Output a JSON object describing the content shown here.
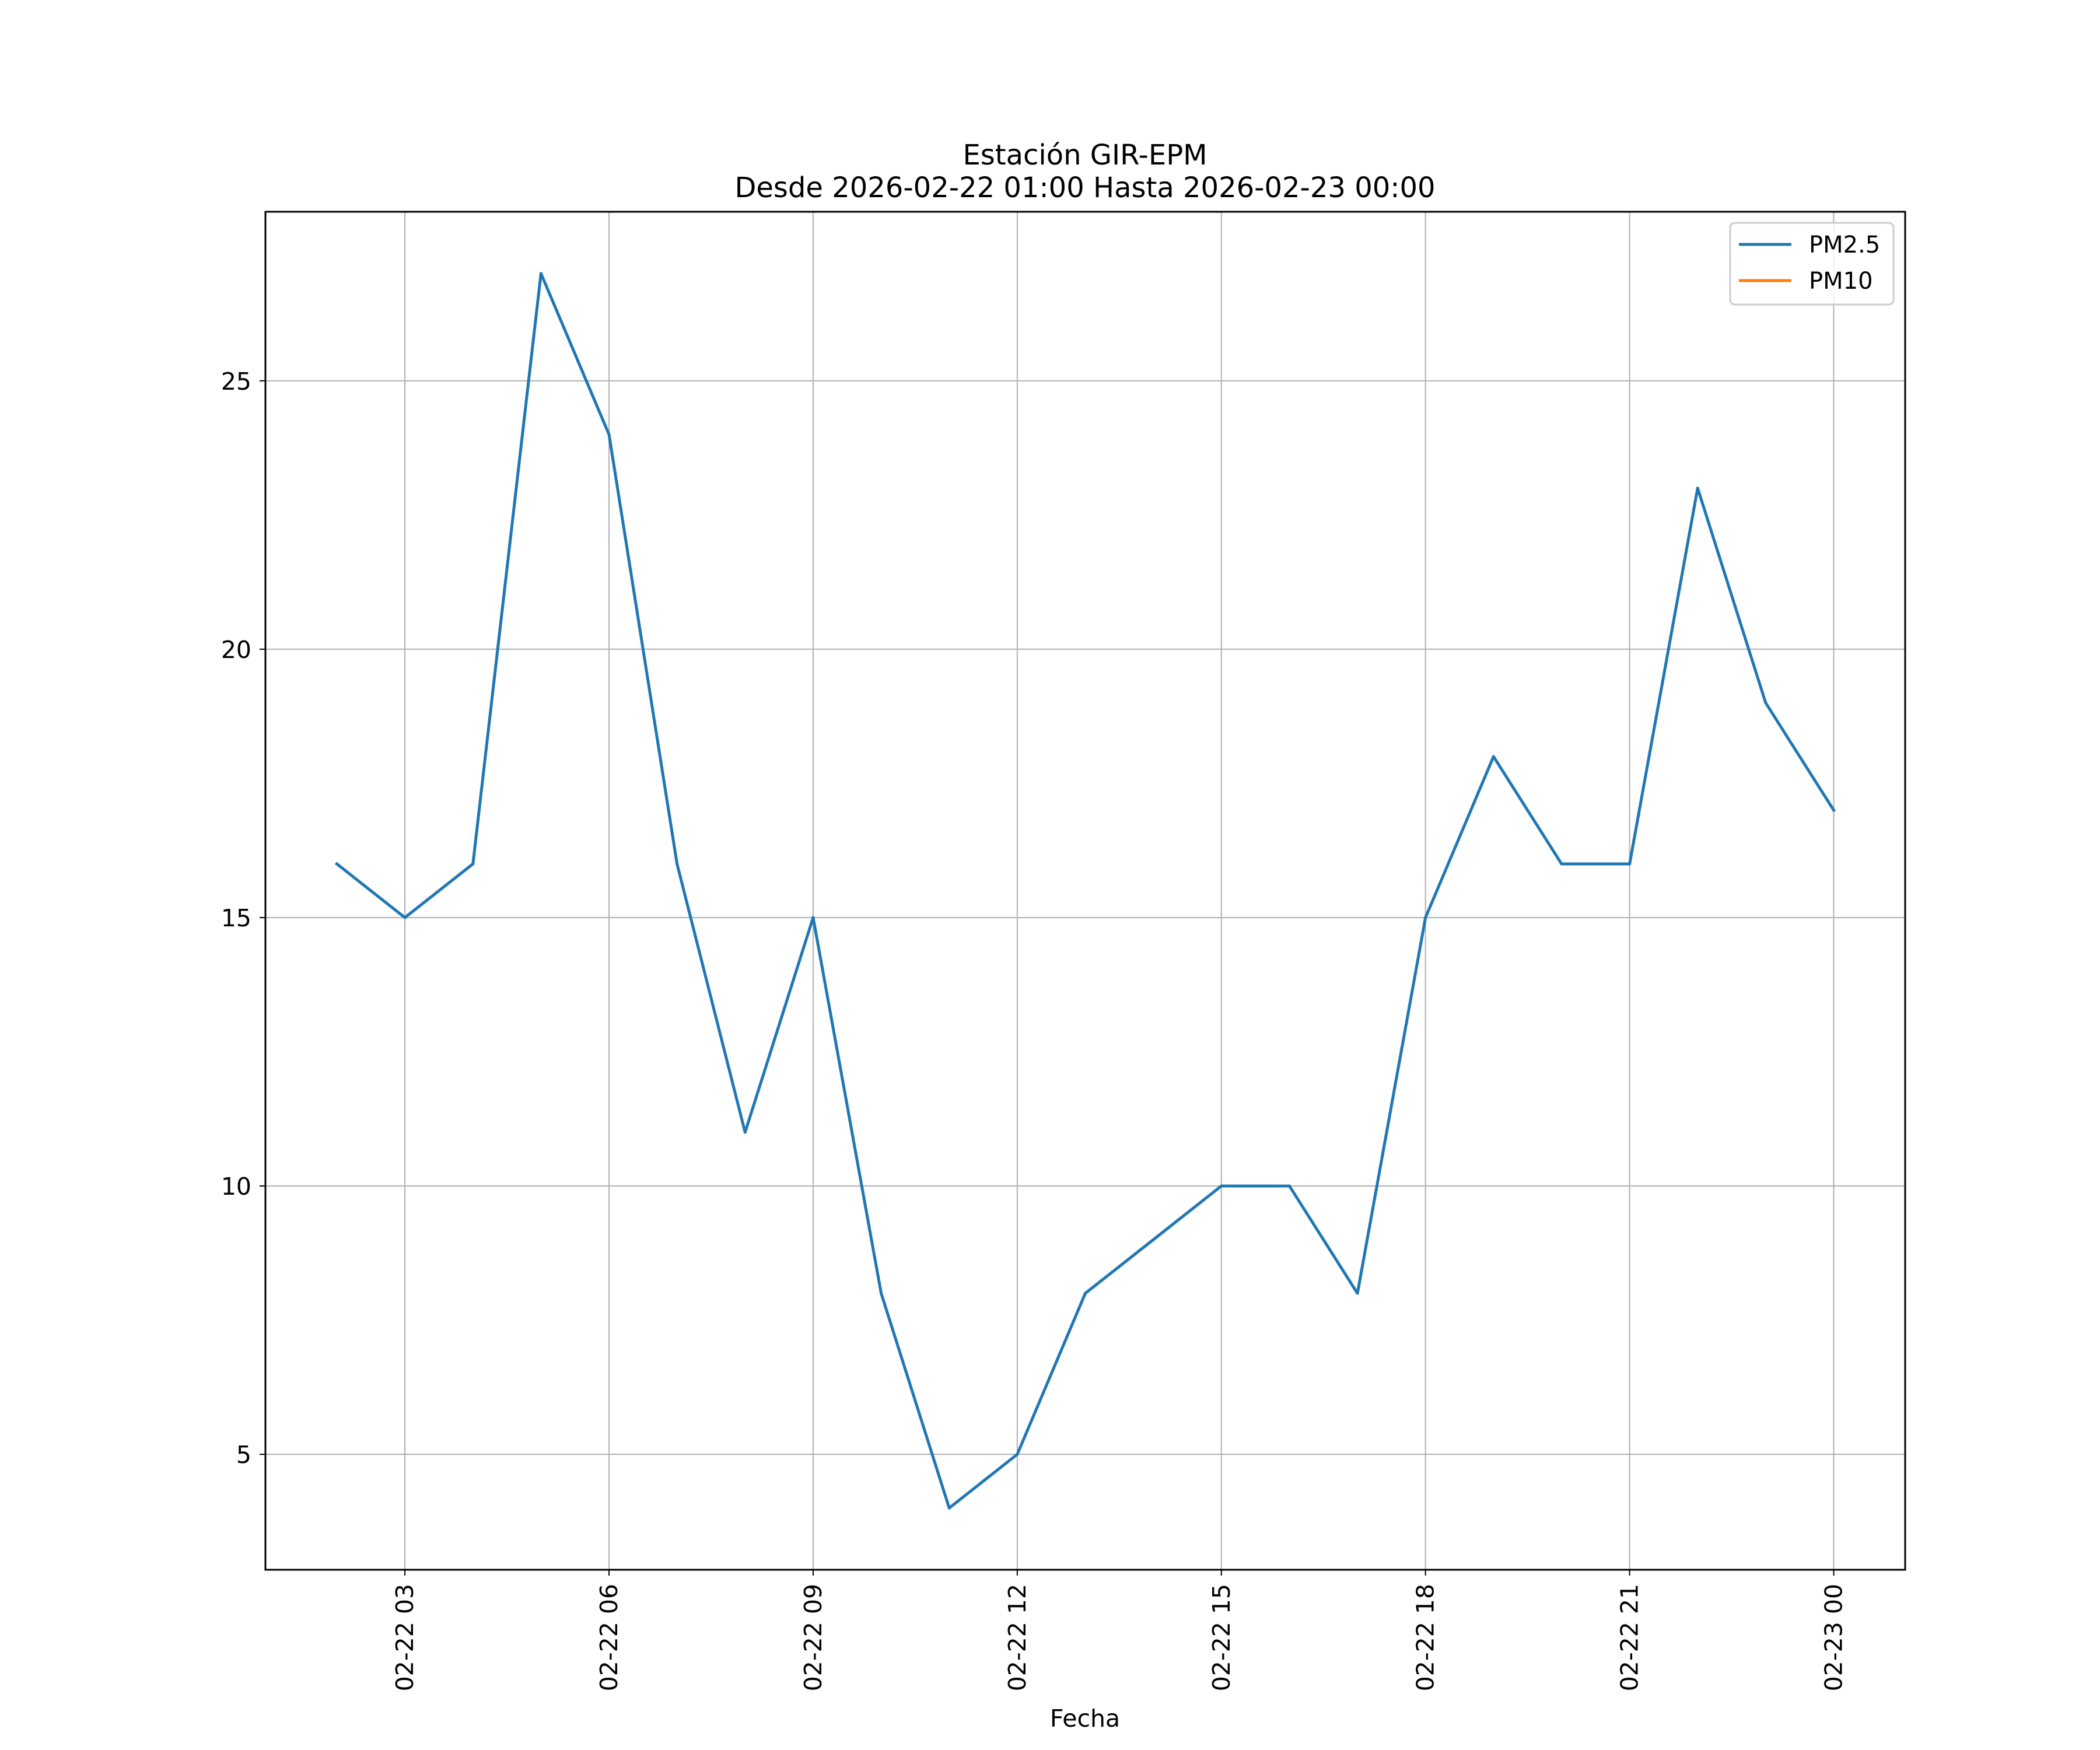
{
  "chart_data": {
    "type": "line",
    "title_line1": "Estación GIR-EPM",
    "title_line2": "Desde 2026-02-22 01:00 Hasta 2026-02-23 00:00",
    "xlabel": "Fecha",
    "ylabel": "",
    "x_ticks": [
      {
        "hour": 3,
        "label": "02-22 03"
      },
      {
        "hour": 6,
        "label": "02-22 06"
      },
      {
        "hour": 9,
        "label": "02-22 09"
      },
      {
        "hour": 12,
        "label": "02-22 12"
      },
      {
        "hour": 15,
        "label": "02-22 15"
      },
      {
        "hour": 18,
        "label": "02-22 18"
      },
      {
        "hour": 21,
        "label": "02-22 21"
      },
      {
        "hour": 24,
        "label": "02-23 00"
      }
    ],
    "y_ticks": [
      5,
      10,
      15,
      20,
      25
    ],
    "xlim": [
      0.95,
      25.05
    ],
    "ylim": [
      2.85,
      28.15
    ],
    "grid": true,
    "legend_position": "top-right",
    "series": [
      {
        "name": "PM2.5",
        "color": "#1f77b4",
        "x": [
          2,
          3,
          4,
          5,
          6,
          7,
          8,
          9,
          10,
          11,
          12,
          13,
          14,
          15,
          16,
          17,
          18,
          19,
          20,
          21,
          22,
          23,
          24
        ],
        "values": [
          16,
          15,
          16,
          27,
          24,
          16,
          11,
          15,
          8,
          4,
          5,
          8,
          9,
          10,
          10,
          8,
          15,
          18,
          16,
          16,
          23,
          19,
          17
        ]
      },
      {
        "name": "PM10",
        "color": "#ff7f0e",
        "x": [],
        "values": []
      }
    ]
  }
}
